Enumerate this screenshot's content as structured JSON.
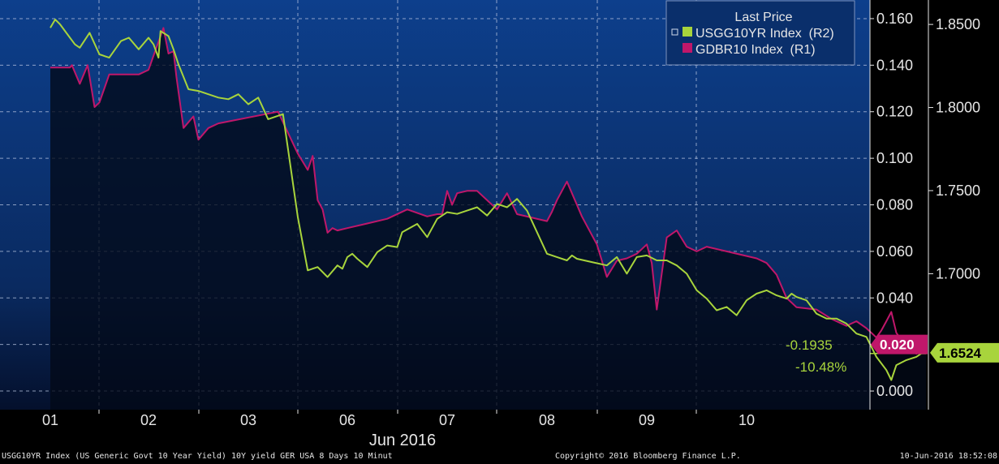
{
  "chart_data": {
    "type": "line",
    "legend": {
      "title": "Last Price",
      "position": "top-right",
      "entries": [
        "USGG10YR Index  (R2)",
        "GDBR10 Index  (R1)"
      ]
    },
    "x_axis": {
      "tick_labels": [
        "01",
        "02",
        "03",
        "06",
        "07",
        "08",
        "09",
        "10"
      ],
      "label": "Jun 2016"
    },
    "y_left": {
      "series": "GDBR10 Index",
      "range": [
        -0.008,
        0.168
      ],
      "ticks": [
        "0.000",
        "0.020",
        "0.040",
        "0.060",
        "0.080",
        "0.100",
        "0.120",
        "0.140",
        "0.160"
      ]
    },
    "y_right": {
      "series": "USGG10YR Index",
      "range": [
        1.6182,
        1.8647
      ],
      "ticks": [
        "1.7000",
        "1.7500",
        "1.8000",
        "1.8500"
      ]
    },
    "last_price_tags": {
      "USGG10YR": "1.6524",
      "GDBR10": "0.020"
    },
    "annotations": {
      "change": "-0.1935",
      "pct_change": "-10.48%"
    },
    "colors": {
      "usgg": "#a8d43c",
      "gdbr": "#c0176a",
      "bg_top": "#0d3f8c",
      "bg_bottom": "#04102c",
      "axis": "#e6e6e6"
    },
    "series": [
      {
        "name": "USGG10YR Index",
        "axis": "right",
        "x": [
          0,
          0.05,
          0.1,
          0.2,
          0.25,
          0.3,
          0.4,
          0.5,
          0.6,
          0.72,
          0.8,
          0.9,
          1.0,
          1.05,
          1.1,
          1.12,
          1.2,
          1.25,
          1.3,
          1.4,
          1.5,
          1.6,
          1.7,
          1.8,
          1.9,
          2.0,
          2.1,
          2.2,
          2.35,
          2.5,
          2.6,
          2.7,
          2.8,
          2.9,
          2.95,
          3.0,
          3.05,
          3.1,
          3.2,
          3.3,
          3.4,
          3.5,
          3.55,
          3.7,
          3.8,
          3.9,
          4.0,
          4.1,
          4.2,
          4.3,
          4.4,
          4.5,
          4.6,
          4.7,
          4.8,
          4.9,
          5.0,
          5.1,
          5.2,
          5.25,
          5.3,
          5.45,
          5.6,
          5.7,
          5.8,
          5.9,
          6.0,
          6.1,
          6.2,
          6.3,
          6.4,
          6.5,
          6.6,
          6.7,
          6.8,
          6.9,
          7.0,
          7.1,
          7.2,
          7.3,
          7.4,
          7.45,
          7.5,
          7.6,
          7.7,
          7.8,
          7.9,
          8.0,
          8.1,
          8.2,
          8.3,
          8.4,
          8.45,
          8.5,
          8.6,
          8.7,
          8.75,
          8.8
        ],
        "values": [
          1.848,
          1.853,
          1.85,
          1.842,
          1.838,
          1.836,
          1.845,
          1.832,
          1.83,
          1.84,
          1.842,
          1.835,
          1.842,
          1.838,
          1.83,
          1.846,
          1.843,
          1.835,
          1.826,
          1.811,
          1.81,
          1.808,
          1.806,
          1.805,
          1.808,
          1.802,
          1.806,
          1.793,
          1.796,
          1.734,
          1.702,
          1.704,
          1.698,
          1.705,
          1.703,
          1.71,
          1.712,
          1.709,
          1.704,
          1.713,
          1.717,
          1.716,
          1.725,
          1.73,
          1.722,
          1.733,
          1.737,
          1.736,
          1.738,
          1.74,
          1.735,
          1.742,
          1.74,
          1.745,
          1.738,
          1.725,
          1.712,
          1.71,
          1.708,
          1.711,
          1.709,
          1.707,
          1.705,
          1.71,
          1.7,
          1.71,
          1.711,
          1.708,
          1.708,
          1.705,
          1.7,
          1.69,
          1.685,
          1.678,
          1.68,
          1.675,
          1.684,
          1.688,
          1.69,
          1.687,
          1.685,
          1.688,
          1.686,
          1.684,
          1.676,
          1.673,
          1.673,
          1.67,
          1.664,
          1.662,
          1.65,
          1.642,
          1.636,
          1.645,
          1.648,
          1.65,
          1.652,
          1.652
        ]
      },
      {
        "name": "GDBR10 Index",
        "axis": "left",
        "x": [
          0,
          0.1,
          0.2,
          0.22,
          0.3,
          0.38,
          0.45,
          0.5,
          0.55,
          0.6,
          0.7,
          0.9,
          1.0,
          1.1,
          1.15,
          1.2,
          1.25,
          1.28,
          1.35,
          1.45,
          1.5,
          1.6,
          1.7,
          2.3,
          2.5,
          2.6,
          2.65,
          2.7,
          2.75,
          2.8,
          2.85,
          2.9,
          3.0,
          3.2,
          3.4,
          3.6,
          3.8,
          3.9,
          3.95,
          4.0,
          4.05,
          4.1,
          4.2,
          4.3,
          4.5,
          4.6,
          4.7,
          5.0,
          5.05,
          5.1,
          5.2,
          5.3,
          5.35,
          5.5,
          5.6,
          5.7,
          5.8,
          5.9,
          6.0,
          6.05,
          6.1,
          6.2,
          6.3,
          6.4,
          6.5,
          6.6,
          6.8,
          7.0,
          7.1,
          7.2,
          7.3,
          7.4,
          7.45,
          7.5,
          7.7,
          7.85,
          8.0,
          8.1,
          8.2,
          8.25,
          8.3,
          8.35,
          8.4,
          8.45,
          8.5,
          8.55,
          8.6,
          8.7,
          8.8
        ],
        "values": [
          0.139,
          0.139,
          0.139,
          0.14,
          0.132,
          0.14,
          0.122,
          0.124,
          0.13,
          0.136,
          0.136,
          0.136,
          0.138,
          0.15,
          0.156,
          0.145,
          0.146,
          0.135,
          0.113,
          0.118,
          0.108,
          0.113,
          0.115,
          0.12,
          0.102,
          0.095,
          0.101,
          0.082,
          0.078,
          0.068,
          0.07,
          0.069,
          0.07,
          0.072,
          0.074,
          0.078,
          0.075,
          0.076,
          0.076,
          0.086,
          0.08,
          0.085,
          0.086,
          0.086,
          0.078,
          0.085,
          0.076,
          0.073,
          0.077,
          0.082,
          0.09,
          0.08,
          0.075,
          0.063,
          0.049,
          0.056,
          0.057,
          0.059,
          0.063,
          0.055,
          0.035,
          0.066,
          0.069,
          0.062,
          0.06,
          0.062,
          0.06,
          0.058,
          0.057,
          0.055,
          0.05,
          0.04,
          0.038,
          0.036,
          0.035,
          0.031,
          0.028,
          0.03,
          0.027,
          0.025,
          0.023,
          0.026,
          0.03,
          0.034,
          0.025,
          0.022,
          0.019,
          0.016,
          0.02
        ]
      }
    ]
  },
  "footer": {
    "left": "USGG10YR Index (US Generic Govt 10 Year Yield) 10Y yield GER USA 8 Days 10 Minut",
    "center": "Copyright© 2016 Bloomberg Finance L.P.",
    "right": "10-Jun-2016 18:52:08"
  }
}
